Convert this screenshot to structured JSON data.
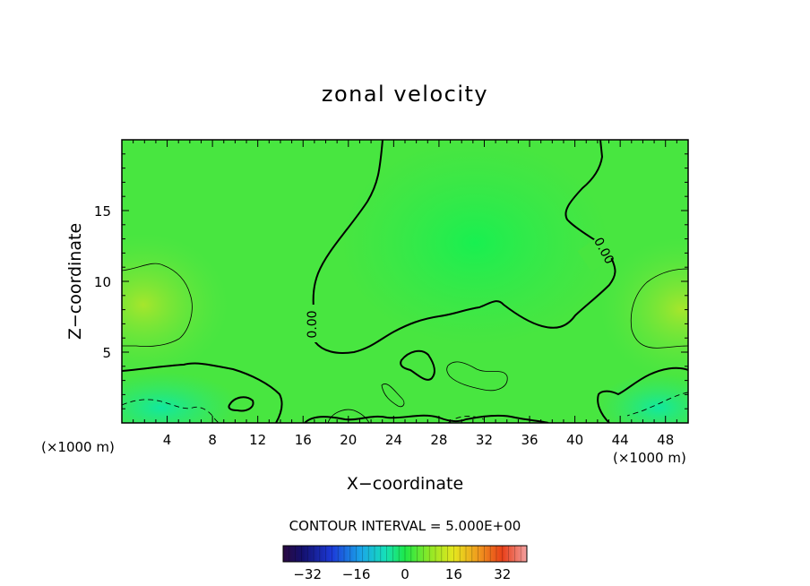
{
  "chart_data": {
    "type": "heatmap",
    "title": "zonal velocity",
    "xlabel": "X−coordinate",
    "ylabel": "Z−coordinate",
    "x_unit_label": "(×1000 m)",
    "x_unit_label_right": "(×1000 m)",
    "xlim": [
      0,
      50
    ],
    "ylim": [
      0,
      20
    ],
    "x_ticks": [
      4,
      8,
      12,
      16,
      20,
      24,
      28,
      32,
      36,
      40,
      44,
      48
    ],
    "x_tick_labels": [
      "4",
      "8",
      "12",
      "16",
      "20",
      "24",
      "28",
      "32",
      "36",
      "40",
      "44",
      "48"
    ],
    "y_ticks": [
      5,
      10,
      15
    ],
    "y_tick_labels": [
      "5",
      "10",
      "15"
    ],
    "contour_labels": [
      {
        "text": "0.00",
        "x": 16.8,
        "y": 7.0
      },
      {
        "text": "0.00",
        "x": 42.0,
        "y": 12.0
      }
    ],
    "contour_interval_text": "CONTOUR INTERVAL = 5.000E+00",
    "colorbar": {
      "min": -40,
      "max": 40,
      "ticks": [
        -32,
        -16,
        0,
        16,
        32
      ],
      "tick_labels": [
        "−32",
        "−16",
        "0",
        "16",
        "32"
      ]
    }
  }
}
